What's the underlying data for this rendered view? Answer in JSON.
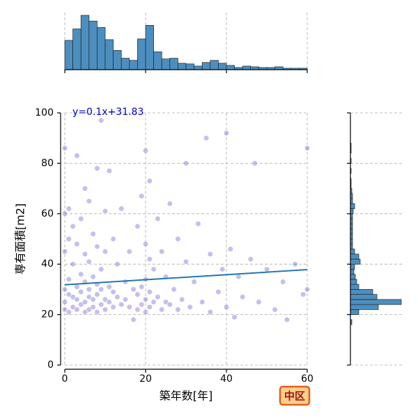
{
  "chart_data": [
    {
      "type": "scatter",
      "x_label": "築年数[年]",
      "y_label": "専有面積[m2]",
      "badge": "中区",
      "xlim": [
        0,
        60
      ],
      "ylim": [
        0,
        100
      ],
      "xticks": [
        0,
        20,
        40,
        60
      ],
      "yticks": [
        0,
        20,
        40,
        60,
        80,
        100
      ],
      "grid": true,
      "color": "#3a2fc7",
      "x": [
        0,
        0,
        0,
        0,
        0,
        0,
        1,
        1,
        1,
        1,
        1,
        2,
        2,
        2,
        2,
        3,
        3,
        3,
        3,
        3,
        4,
        4,
        4,
        4,
        5,
        5,
        5,
        5,
        5,
        6,
        6,
        6,
        6,
        6,
        7,
        7,
        7,
        7,
        8,
        8,
        8,
        8,
        8,
        9,
        9,
        9,
        9,
        10,
        10,
        10,
        10,
        11,
        11,
        11,
        12,
        12,
        12,
        13,
        13,
        14,
        14,
        15,
        15,
        16,
        16,
        17,
        17,
        18,
        18,
        18,
        19,
        19,
        19,
        20,
        20,
        20,
        20,
        20,
        21,
        21,
        21,
        21,
        22,
        22,
        23,
        23,
        24,
        24,
        25,
        25,
        26,
        26,
        27,
        28,
        28,
        29,
        30,
        30,
        31,
        32,
        33,
        34,
        35,
        36,
        36,
        38,
        39,
        40,
        40,
        41,
        42,
        43,
        44,
        46,
        47,
        48,
        50,
        52,
        54,
        55,
        57,
        59,
        60,
        60
      ],
      "y": [
        22,
        25,
        30,
        45,
        60,
        86,
        21,
        28,
        34,
        50,
        62,
        23,
        27,
        40,
        55,
        22,
        26,
        31,
        48,
        83,
        24,
        29,
        36,
        58,
        21,
        25,
        33,
        44,
        70,
        22,
        27,
        30,
        41,
        65,
        23,
        26,
        35,
        52,
        21,
        28,
        32,
        47,
        78,
        24,
        30,
        38,
        97,
        22,
        26,
        45,
        61,
        25,
        31,
        77,
        23,
        29,
        50,
        27,
        40,
        24,
        62,
        26,
        33,
        23,
        45,
        30,
        18,
        22,
        28,
        55,
        24,
        31,
        67,
        21,
        26,
        34,
        48,
        85,
        23,
        29,
        42,
        73,
        25,
        38,
        27,
        58,
        22,
        45,
        25,
        35,
        24,
        64,
        30,
        22,
        50,
        26,
        41,
        80,
        23,
        33,
        56,
        25,
        90,
        21,
        44,
        29,
        38,
        23,
        92,
        46,
        19,
        35,
        27,
        42,
        80,
        25,
        38,
        22,
        33,
        18,
        40,
        28,
        86,
        30
      ],
      "regression": {
        "label": "y=0.1x+31.83",
        "slope": 0.1,
        "intercept": 31.83,
        "color": "#1f77b4",
        "label_color": "#0000cc"
      }
    },
    {
      "type": "histogram",
      "orientation": "vertical",
      "color": "#4c8fbf",
      "bins": [
        0,
        2,
        4,
        6,
        8,
        10,
        12,
        14,
        16,
        18,
        20,
        22,
        24,
        26,
        28,
        30,
        32,
        34,
        36,
        38,
        40,
        42,
        44,
        46,
        48,
        50,
        52,
        54,
        56,
        58,
        60
      ],
      "values": [
        41,
        57,
        76,
        68,
        59,
        42,
        27,
        16,
        13,
        43,
        62,
        25,
        15,
        16,
        9,
        8,
        5,
        10,
        13,
        9,
        6,
        3,
        5,
        4,
        3,
        3,
        4,
        2,
        2,
        2
      ],
      "xticks": [
        0,
        20,
        40,
        60
      ],
      "grid": true
    },
    {
      "type": "histogram",
      "orientation": "horizontal",
      "color": "#4c8fbf",
      "bins": [
        14,
        16,
        18,
        20,
        22,
        24,
        26,
        28,
        30,
        32,
        34,
        36,
        38,
        40,
        42,
        44,
        46,
        48,
        50,
        52,
        54,
        56,
        58,
        60,
        62,
        64,
        66,
        68,
        70,
        72,
        74,
        76,
        78,
        80,
        82,
        84,
        86,
        88
      ],
      "values": [
        0,
        2,
        0,
        12,
        40,
        73,
        38,
        32,
        12,
        9,
        7,
        5,
        6,
        14,
        12,
        6,
        3,
        3,
        3,
        3,
        3,
        3,
        3,
        4,
        6,
        3,
        3,
        2,
        1,
        1,
        0,
        1,
        0,
        1,
        0,
        1,
        1
      ],
      "yticks": [
        0,
        20,
        40,
        60,
        80,
        100
      ],
      "grid": true
    }
  ]
}
